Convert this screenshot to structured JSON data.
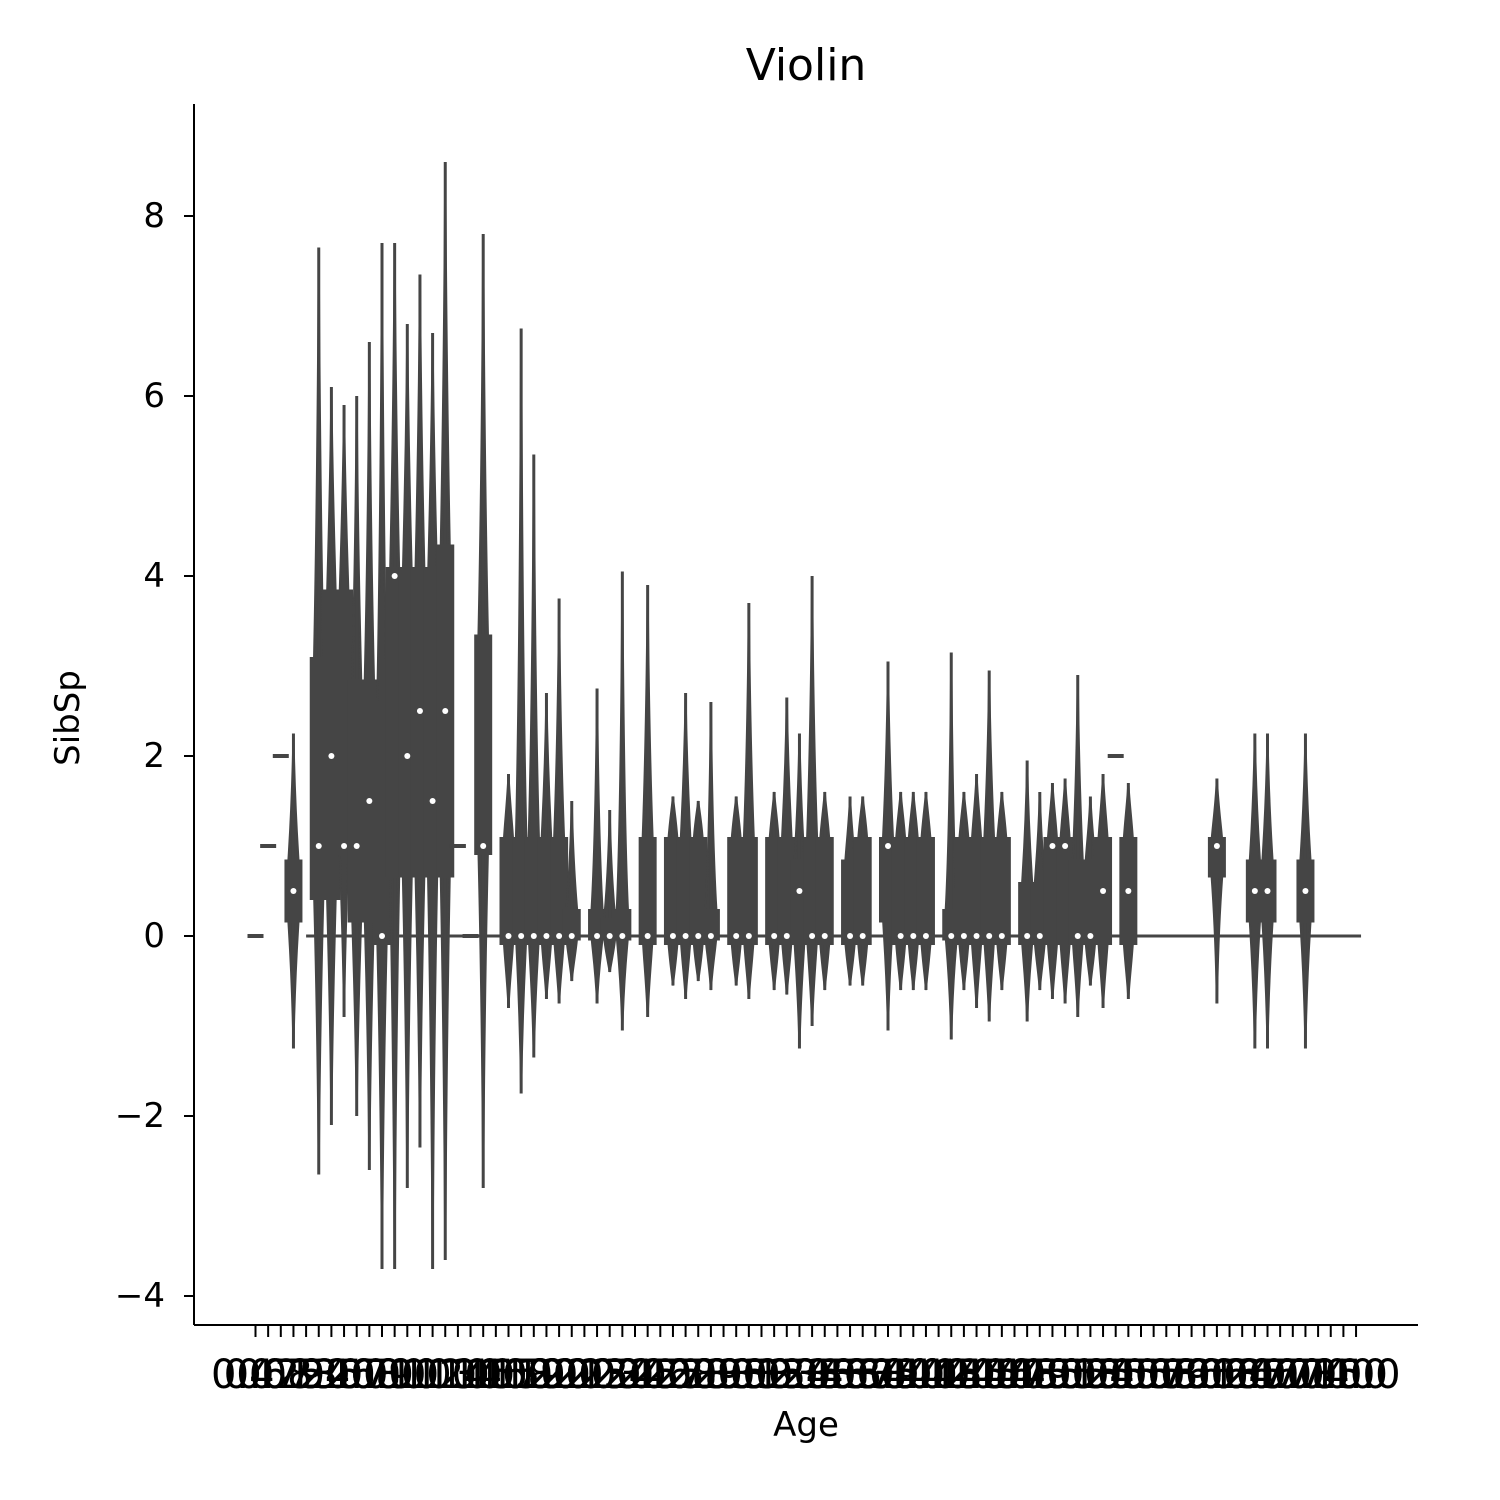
{
  "chart_data": {
    "type": "violin",
    "title": "Violin",
    "xlabel": "Age",
    "ylabel": "SibSp",
    "ylim": [
      -4.3,
      9.2
    ],
    "yticks": [
      {
        "value": -4,
        "label": "−4"
      },
      {
        "value": -2,
        "label": "−2"
      },
      {
        "value": 0,
        "label": "0"
      },
      {
        "value": 2,
        "label": "2"
      },
      {
        "value": 4,
        "label": "4"
      },
      {
        "value": 6,
        "label": "6"
      },
      {
        "value": 8,
        "label": "8"
      }
    ],
    "xtick_labels": [
      "0.42",
      "0.67",
      "0.75",
      "0.83",
      "0.92",
      "1.0",
      "2.0",
      "3.0",
      "4.0",
      "5.0",
      "6.0",
      "7.0",
      "8.0",
      "9.0",
      "10.0",
      "11.0",
      "12.0",
      "13.0",
      "14.0",
      "14.5",
      "15.0",
      "16.0",
      "17.0",
      "18.0",
      "19.0",
      "20.0",
      "20.5",
      "21.0",
      "22.0",
      "23.0",
      "23.5",
      "24.0",
      "24.5",
      "25.0",
      "26.0",
      "27.0",
      "28.0",
      "28.5",
      "29.0",
      "30.0",
      "30.5",
      "31.0",
      "32.0",
      "32.5",
      "33.0",
      "34.0",
      "34.5",
      "35.0",
      "36.0",
      "36.5",
      "37.0",
      "38.0",
      "39.0",
      "40.0",
      "40.5",
      "41.0",
      "42.0",
      "43.0",
      "44.0",
      "45.0",
      "45.5",
      "46.0",
      "47.0",
      "48.0",
      "49.0",
      "50.0",
      "51.0",
      "52.0",
      "53.0",
      "54.0",
      "55.0",
      "55.5",
      "56.0",
      "57.0",
      "58.0",
      "59.0",
      "60.0",
      "61.0",
      "62.0",
      "63.0",
      "64.0",
      "65.0",
      "66.0",
      "70.0",
      "70.5",
      "71.0",
      "74.0",
      "80.0"
    ],
    "distributions": [
      {
        "i": 0,
        "kind": "point",
        "median": 0
      },
      {
        "i": 1,
        "kind": "point",
        "median": 1
      },
      {
        "i": 2,
        "kind": "point",
        "median": 2
      },
      {
        "i": 3,
        "kind": "violin",
        "median": 0.5,
        "q1": 0.15,
        "q3": 0.85,
        "ymin": -1.25,
        "ymax": 2.25
      },
      {
        "i": 5,
        "kind": "violin",
        "median": 1,
        "q1": 0.4,
        "q3": 3.1,
        "ymin": -2.65,
        "ymax": 7.65
      },
      {
        "i": 6,
        "kind": "violin",
        "median": 2,
        "q1": 0.4,
        "q3": 3.85,
        "ymin": -2.1,
        "ymax": 6.1
      },
      {
        "i": 7,
        "kind": "violin",
        "median": 1,
        "q1": 0.9,
        "q3": 3.85,
        "ymin": -0.9,
        "ymax": 5.9
      },
      {
        "i": 8,
        "kind": "violin",
        "median": 1,
        "q1": 0.15,
        "q3": 2.85,
        "ymin": -2.0,
        "ymax": 6.0
      },
      {
        "i": 9,
        "kind": "violin",
        "median": 1.5,
        "q1": 0.15,
        "q3": 2.85,
        "ymin": -2.6,
        "ymax": 6.6
      },
      {
        "i": 10,
        "kind": "violin",
        "median": 0,
        "q1": -0.1,
        "q3": 2.6,
        "ymin": -3.7,
        "ymax": 7.7
      },
      {
        "i": 11,
        "kind": "violin",
        "median": 4,
        "q1": 0.65,
        "q3": 4.1,
        "ymin": -3.7,
        "ymax": 7.7
      },
      {
        "i": 12,
        "kind": "violin",
        "median": 2,
        "q1": 0.65,
        "q3": 4.1,
        "ymin": -2.8,
        "ymax": 6.8
      },
      {
        "i": 13,
        "kind": "violin",
        "median": 2.5,
        "q1": 0.65,
        "q3": 4.1,
        "ymin": -2.35,
        "ymax": 7.35
      },
      {
        "i": 14,
        "kind": "violin",
        "median": 1.5,
        "q1": 0.65,
        "q3": 4.1,
        "ymin": -3.7,
        "ymax": 6.7
      },
      {
        "i": 15,
        "kind": "violin",
        "median": 2.5,
        "q1": 0.65,
        "q3": 4.35,
        "ymin": -3.6,
        "ymax": 8.6
      },
      {
        "i": 16,
        "kind": "point",
        "median": 1
      },
      {
        "i": 17,
        "kind": "point",
        "median": 0
      },
      {
        "i": 18,
        "kind": "violin",
        "median": 1,
        "q1": 0.9,
        "q3": 3.35,
        "ymin": -2.8,
        "ymax": 7.8
      },
      {
        "i": 20,
        "kind": "violin",
        "median": 0,
        "q1": -0.1,
        "q3": 1.1,
        "ymin": -0.8,
        "ymax": 1.8
      },
      {
        "i": 21,
        "kind": "violin",
        "median": 0,
        "q1": -0.1,
        "q3": 1.1,
        "ymin": -1.75,
        "ymax": 6.75
      },
      {
        "i": 22,
        "kind": "violin",
        "median": 0,
        "q1": -0.1,
        "q3": 1.1,
        "ymin": -1.35,
        "ymax": 5.35
      },
      {
        "i": 23,
        "kind": "violin",
        "median": 0,
        "q1": -0.1,
        "q3": 1.1,
        "ymin": -0.7,
        "ymax": 2.7
      },
      {
        "i": 24,
        "kind": "violin",
        "median": 0,
        "q1": -0.1,
        "q3": 1.1,
        "ymin": -0.75,
        "ymax": 3.75
      },
      {
        "i": 25,
        "kind": "violin",
        "median": 0,
        "q1": -0.05,
        "q3": 0.3,
        "ymin": -0.5,
        "ymax": 1.5
      },
      {
        "i": 27,
        "kind": "violin",
        "median": 0,
        "q1": -0.05,
        "q3": 0.3,
        "ymin": -0.75,
        "ymax": 2.75
      },
      {
        "i": 28,
        "kind": "violin",
        "median": 0,
        "q1": -0.05,
        "q3": 0.2,
        "ymin": -0.4,
        "ymax": 1.4
      },
      {
        "i": 29,
        "kind": "violin",
        "median": 0,
        "q1": -0.05,
        "q3": 0.3,
        "ymin": -1.05,
        "ymax": 4.05
      },
      {
        "i": 31,
        "kind": "violin",
        "median": 0,
        "q1": -0.1,
        "q3": 1.1,
        "ymin": -0.9,
        "ymax": 3.9
      },
      {
        "i": 33,
        "kind": "violin",
        "median": 0,
        "q1": -0.1,
        "q3": 1.1,
        "ymin": -0.55,
        "ymax": 1.55
      },
      {
        "i": 34,
        "kind": "violin",
        "median": 0,
        "q1": -0.1,
        "q3": 1.1,
        "ymin": -0.7,
        "ymax": 2.7
      },
      {
        "i": 35,
        "kind": "violin",
        "median": 0,
        "q1": -0.1,
        "q3": 1.1,
        "ymin": -0.5,
        "ymax": 1.5
      },
      {
        "i": 36,
        "kind": "violin",
        "median": 0,
        "q1": -0.05,
        "q3": 0.3,
        "ymin": -0.6,
        "ymax": 2.6
      },
      {
        "i": 38,
        "kind": "violin",
        "median": 0,
        "q1": -0.1,
        "q3": 1.1,
        "ymin": -0.55,
        "ymax": 1.55
      },
      {
        "i": 39,
        "kind": "violin",
        "median": 0,
        "q1": -0.1,
        "q3": 1.1,
        "ymin": -0.7,
        "ymax": 3.7
      },
      {
        "i": 41,
        "kind": "violin",
        "median": 0,
        "q1": -0.1,
        "q3": 1.1,
        "ymin": -0.6,
        "ymax": 1.6
      },
      {
        "i": 42,
        "kind": "violin",
        "median": 0,
        "q1": -0.1,
        "q3": 1.1,
        "ymin": -0.65,
        "ymax": 2.65
      },
      {
        "i": 43,
        "kind": "violin",
        "median": 0.5,
        "q1": -0.1,
        "q3": 0.85,
        "ymin": -1.25,
        "ymax": 2.25
      },
      {
        "i": 44,
        "kind": "violin",
        "median": 0,
        "q1": -0.1,
        "q3": 1.1,
        "ymin": -1.0,
        "ymax": 4.0
      },
      {
        "i": 45,
        "kind": "violin",
        "median": 0,
        "q1": -0.1,
        "q3": 1.1,
        "ymin": -0.6,
        "ymax": 1.6
      },
      {
        "i": 47,
        "kind": "violin",
        "median": 0,
        "q1": -0.1,
        "q3": 0.85,
        "ymin": -0.55,
        "ymax": 1.55
      },
      {
        "i": 48,
        "kind": "violin",
        "median": 0,
        "q1": -0.1,
        "q3": 1.1,
        "ymin": -0.55,
        "ymax": 1.55
      },
      {
        "i": 50,
        "kind": "violin",
        "median": 1,
        "q1": 0.15,
        "q3": 1.1,
        "ymin": -1.05,
        "ymax": 3.05
      },
      {
        "i": 51,
        "kind": "violin",
        "median": 0,
        "q1": -0.1,
        "q3": 1.1,
        "ymin": -0.6,
        "ymax": 1.6
      },
      {
        "i": 52,
        "kind": "violin",
        "median": 0,
        "q1": -0.1,
        "q3": 1.1,
        "ymin": -0.6,
        "ymax": 1.6
      },
      {
        "i": 53,
        "kind": "violin",
        "median": 0,
        "q1": -0.1,
        "q3": 1.1,
        "ymin": -0.6,
        "ymax": 1.6
      },
      {
        "i": 55,
        "kind": "violin",
        "median": 0,
        "q1": -0.05,
        "q3": 0.3,
        "ymin": -1.15,
        "ymax": 3.15
      },
      {
        "i": 56,
        "kind": "violin",
        "median": 0,
        "q1": -0.1,
        "q3": 1.1,
        "ymin": -0.6,
        "ymax": 1.6
      },
      {
        "i": 57,
        "kind": "violin",
        "median": 0,
        "q1": -0.1,
        "q3": 1.1,
        "ymin": -0.8,
        "ymax": 1.8
      },
      {
        "i": 58,
        "kind": "violin",
        "median": 0,
        "q1": -0.1,
        "q3": 1.1,
        "ymin": -0.95,
        "ymax": 2.95
      },
      {
        "i": 59,
        "kind": "violin",
        "median": 0,
        "q1": -0.1,
        "q3": 1.1,
        "ymin": -0.6,
        "ymax": 1.6
      },
      {
        "i": 61,
        "kind": "violin",
        "median": 0,
        "q1": -0.1,
        "q3": 0.6,
        "ymin": -0.95,
        "ymax": 1.95
      },
      {
        "i": 62,
        "kind": "violin",
        "median": 0,
        "q1": -0.1,
        "q3": 0.6,
        "ymin": -0.6,
        "ymax": 1.6
      },
      {
        "i": 63,
        "kind": "violin",
        "median": 1,
        "q1": -0.1,
        "q3": 1.1,
        "ymin": -0.7,
        "ymax": 1.7
      },
      {
        "i": 64,
        "kind": "violin",
        "median": 1,
        "q1": -0.1,
        "q3": 1.1,
        "ymin": -0.75,
        "ymax": 1.75
      },
      {
        "i": 65,
        "kind": "violin",
        "median": 0,
        "q1": -0.1,
        "q3": 0.85,
        "ymin": -0.9,
        "ymax": 2.9
      },
      {
        "i": 66,
        "kind": "violin",
        "median": 0,
        "q1": -0.1,
        "q3": 0.85,
        "ymin": -0.55,
        "ymax": 1.55
      },
      {
        "i": 67,
        "kind": "violin",
        "median": 0.5,
        "q1": -0.1,
        "q3": 1.1,
        "ymin": -0.8,
        "ymax": 1.8
      },
      {
        "i": 68,
        "kind": "point",
        "median": 2
      },
      {
        "i": 69,
        "kind": "violin",
        "median": 0.5,
        "q1": -0.1,
        "q3": 1.1,
        "ymin": -0.7,
        "ymax": 1.7
      },
      {
        "i": 76,
        "kind": "violin",
        "median": 1,
        "q1": 0.65,
        "q3": 1.1,
        "ymin": -0.75,
        "ymax": 1.75
      },
      {
        "i": 79,
        "kind": "violin",
        "median": 0.5,
        "q1": 0.15,
        "q3": 0.85,
        "ymin": -1.25,
        "ymax": 2.25
      },
      {
        "i": 80,
        "kind": "violin",
        "median": 0.5,
        "q1": 0.15,
        "q3": 0.85,
        "ymin": -1.25,
        "ymax": 2.25
      },
      {
        "i": 83,
        "kind": "violin",
        "median": 0.5,
        "q1": 0.15,
        "q3": 0.85,
        "ymin": -1.25,
        "ymax": 2.25
      }
    ],
    "zero_line_range": [
      4,
      87
    ],
    "colors": {
      "body": "#454545",
      "median": "#ffffff",
      "axis": "#000000"
    }
  }
}
